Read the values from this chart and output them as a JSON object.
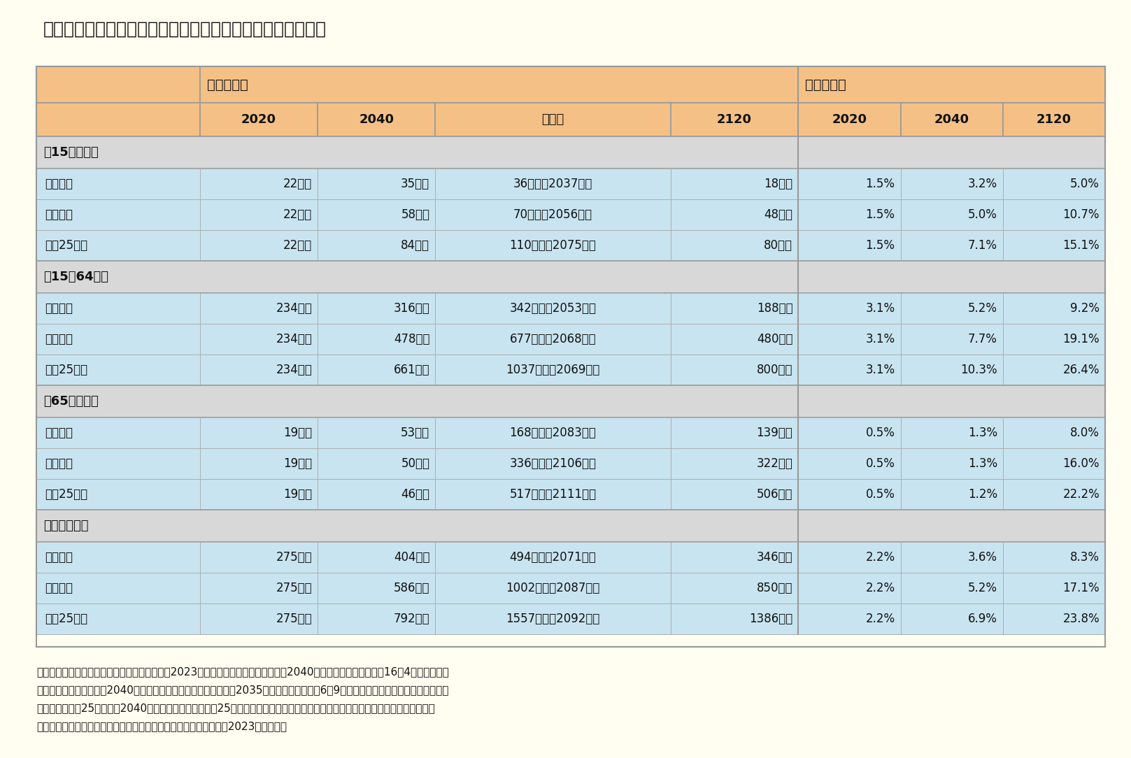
{
  "title": "図表７　外国人人口と外国人比率の実績と見通し（主な年）",
  "footnotes": [
    "（注１）　中位推計は「日本の将来推計人口（2023年推計）」の標準的なケース。2040年の外国人入国超過数を16．4万人と仮定。",
    "　　　　　流入据置は、2040年の外国人入国超過数を前回推計の2035年時点と同じ水準（6．9万人）と仮定した条件付推計の結果。",
    "　　　　　流入25万人は、2040年の外国人入国超過数を25万人と仮定した条件付推計の結果。いずれも出生と死亡の仮定は中位。",
    "（資料）　国立社会保障・人口問題研究所「日本の将来推計人口（2023年推計）」"
  ],
  "sections": [
    {
      "label": "【15歳未満】",
      "rows": [
        [
          "流入据置",
          "22万人",
          "35万人",
          "36万人（2037年）",
          "18万人",
          "1.5%",
          "3.2%",
          "5.0%"
        ],
        [
          "中位推計",
          "22万人",
          "58万人",
          "70万人（2056年）",
          "48万人",
          "1.5%",
          "5.0%",
          "10.7%"
        ],
        [
          "流入25万人",
          "22万人",
          "84万人",
          "110万人（2075年）",
          "80万人",
          "1.5%",
          "7.1%",
          "15.1%"
        ]
      ]
    },
    {
      "label": "【15〜64歳】",
      "rows": [
        [
          "流入据置",
          "234万人",
          "316万人",
          "342万人（2053年）",
          "188万人",
          "3.1%",
          "5.2%",
          "9.2%"
        ],
        [
          "中位推計",
          "234万人",
          "478万人",
          "677万人（2068年）",
          "480万人",
          "3.1%",
          "7.7%",
          "19.1%"
        ],
        [
          "流入25万人",
          "234万人",
          "661万人",
          "1037万人（2069年）",
          "800万人",
          "3.1%",
          "10.3%",
          "26.4%"
        ]
      ]
    },
    {
      "label": "【65歳以上】",
      "rows": [
        [
          "流入据置",
          "19万人",
          "53万人",
          "168万人（2083年）",
          "139万人",
          "0.5%",
          "1.3%",
          "8.0%"
        ],
        [
          "中位推計",
          "19万人",
          "50万人",
          "336万人（2106年）",
          "322万人",
          "0.5%",
          "1.3%",
          "16.0%"
        ],
        [
          "流入25万人",
          "19万人",
          "46万人",
          "517万人（2111年）",
          "506万人",
          "0.5%",
          "1.2%",
          "22.2%"
        ]
      ]
    },
    {
      "label": "【全年齢計】",
      "rows": [
        [
          "流入据置",
          "275万人",
          "404万人",
          "494万人（2071年）",
          "346万人",
          "2.2%",
          "3.6%",
          "8.3%"
        ],
        [
          "中位推計",
          "275万人",
          "586万人",
          "1002万人（2087年）",
          "850万人",
          "2.2%",
          "5.2%",
          "17.1%"
        ],
        [
          "流入25万人",
          "275万人",
          "792万人",
          "1557万人（2092年）",
          "1386万人",
          "2.2%",
          "6.9%",
          "23.8%"
        ]
      ]
    }
  ],
  "colors": {
    "fig_bg": "#fffef0",
    "table_bg": "#fffef0",
    "header_bg": "#f5c086",
    "section_bg": "#d8d8d8",
    "data_row_bg": "#c8e4f0",
    "table_border": "#999999",
    "cell_border": "#aaaaaa",
    "text_dark": "#111111"
  }
}
